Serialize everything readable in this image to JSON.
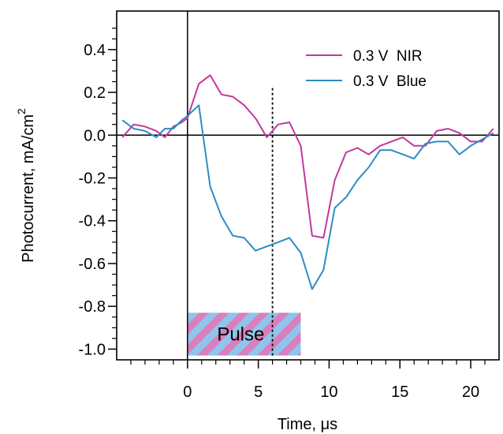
{
  "chart_data": {
    "type": "line",
    "xlabel": "Time, μs",
    "ylabel": "Photocurrent, mA/cm",
    "ylabel_superscript": "2",
    "xlim": [
      -5,
      22
    ],
    "ylim": [
      -1.05,
      0.58
    ],
    "x_ticks": [
      0,
      5,
      10,
      15,
      20
    ],
    "y_ticks": [
      0.4,
      0.2,
      0.0,
      -0.2,
      -0.4,
      -0.6,
      -0.8,
      -1.0
    ],
    "x_tick_labels": [
      "0",
      "5",
      "10",
      "15",
      "20"
    ],
    "y_tick_labels": [
      "0.4",
      "0.2",
      "0.0",
      "-0.2",
      "-0.4",
      "-0.6",
      "-0.8",
      "-1.0"
    ],
    "grid": false,
    "legend_position": "top-right",
    "series": [
      {
        "name": "0.3 V  NIR",
        "color": "#c0399a",
        "x": [
          -4.6,
          -3.8,
          -3.0,
          -2.2,
          -1.6,
          -1.0,
          -0.4,
          0.0,
          0.8,
          1.6,
          2.4,
          3.2,
          4.0,
          4.8,
          5.6,
          6.4,
          7.2,
          8.0,
          8.8,
          9.6,
          10.4,
          11.2,
          12.0,
          12.8,
          13.6,
          14.4,
          15.2,
          16.0,
          16.8,
          17.6,
          18.4,
          19.2,
          20.0,
          20.8,
          21.6
        ],
        "y": [
          -0.01,
          0.05,
          0.04,
          0.02,
          -0.01,
          0.04,
          0.06,
          0.08,
          0.24,
          0.28,
          0.19,
          0.18,
          0.14,
          0.08,
          -0.01,
          0.05,
          0.06,
          -0.05,
          -0.47,
          -0.48,
          -0.21,
          -0.08,
          -0.06,
          -0.09,
          -0.05,
          -0.03,
          -0.01,
          -0.05,
          -0.05,
          0.02,
          0.03,
          0.01,
          -0.03,
          -0.03,
          0.03
        ]
      },
      {
        "name": "0.3 V  Blue",
        "color": "#2e8bc4",
        "x": [
          -4.6,
          -3.8,
          -3.0,
          -2.2,
          -1.6,
          -1.0,
          -0.4,
          0.0,
          0.8,
          1.6,
          2.4,
          3.2,
          4.0,
          4.8,
          5.6,
          6.4,
          7.2,
          8.0,
          8.8,
          9.6,
          10.4,
          11.2,
          12.0,
          12.8,
          13.6,
          14.4,
          15.2,
          16.0,
          16.8,
          17.6,
          18.4,
          19.2,
          20.0,
          20.8,
          21.6
        ],
        "y": [
          0.07,
          0.03,
          0.02,
          -0.01,
          0.03,
          0.03,
          0.07,
          0.09,
          0.14,
          -0.24,
          -0.38,
          -0.47,
          -0.48,
          -0.54,
          -0.52,
          -0.5,
          -0.48,
          -0.55,
          -0.72,
          -0.63,
          -0.34,
          -0.29,
          -0.21,
          -0.15,
          -0.07,
          -0.07,
          -0.09,
          -0.11,
          -0.04,
          -0.03,
          -0.03,
          -0.09,
          -0.05,
          -0.02,
          0.01
        ]
      }
    ],
    "annotations": {
      "pulse_label": "Pulse",
      "pulse_start": 0,
      "pulse_end": 8,
      "pulse_y_top": -0.83,
      "pulse_y_bottom": -1.03,
      "pulse_colors": [
        "#8fc5ec",
        "#d880bd"
      ],
      "dashed_line_x": 6,
      "dashed_line_y_top": 0.22,
      "vertical_zero_line_x": 0,
      "horizontal_zero_line_y": 0
    }
  }
}
